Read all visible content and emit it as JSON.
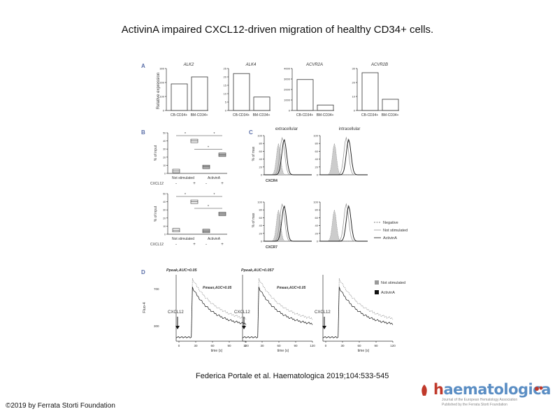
{
  "title": "ActivinA impaired CXCL12-driven migration of healthy CD34+ cells.",
  "citation": "Federica Portale et al. Haematologica 2019;104:533-545",
  "copyright": "©2019 by Ferrata Storti Foundation",
  "logo": {
    "brand_prefix": "h",
    "brand_rest": "aematologica",
    "line1": "Journal of the European Hematology Association",
    "line2": "Published by the Ferrata Storti Foundation"
  },
  "figure": {
    "panel_letters": [
      "A",
      "B",
      "C",
      "D"
    ],
    "panel_a": {
      "ylabel": "Relative expression",
      "charts": [
        {
          "title": "ALK2",
          "categories": [
            "CB-CD34+",
            "BM-CD34+"
          ],
          "values": [
            190,
            240
          ],
          "yticks": [
            "300",
            "200",
            "100",
            "0"
          ],
          "ymax": 300
        },
        {
          "title": "ALK4",
          "categories": [
            "CB-CD34+",
            "BM-CD34+"
          ],
          "values": [
            22,
            8
          ],
          "yticks": [
            "25",
            "20",
            "15",
            "10",
            "5",
            "0"
          ],
          "ymax": 25
        },
        {
          "title": "ACVR2A",
          "categories": [
            "CB-CD34+",
            "BM-CD34+"
          ],
          "values": [
            2950,
            520
          ],
          "yticks": [
            "4000",
            "3000",
            "2000",
            "1000",
            "0"
          ],
          "ymax": 4000
        },
        {
          "title": "ACVR2B",
          "categories": [
            "CB-CD34+",
            "BM-CD34+"
          ],
          "values": [
            27,
            8
          ],
          "yticks": [
            "30",
            "20",
            "10",
            "0"
          ],
          "ymax": 30
        }
      ]
    },
    "panel_b": {
      "ylabel": "% of input",
      "group_labels": [
        "Not stimulated",
        "ActivinA"
      ],
      "row_label": "CXCL12",
      "signs": [
        "-",
        "+",
        "-",
        "+"
      ],
      "sig": "*",
      "plots": [
        {
          "medians": [
            3,
            40,
            8,
            23
          ]
        },
        {
          "medians": [
            5,
            40,
            4,
            25
          ]
        }
      ]
    },
    "panel_c": {
      "col_labels": [
        "extracellular",
        "intracellular"
      ],
      "ylabel": "% of max",
      "xlabels": [
        "CXCR4",
        "CXCR7"
      ],
      "yticks": [
        "100",
        "80",
        "60",
        "40",
        "20",
        "0"
      ],
      "legend": [
        "Negative",
        "Not stimulated",
        "ActivinA"
      ]
    },
    "panel_d": {
      "ylabel": "Fluo-4",
      "xlabel": "time (s)",
      "xticks": [
        "0",
        "30",
        "60",
        "90",
        "120"
      ],
      "arrow_label": "CXCL12",
      "annotations": [
        "Ppeak,AUC=0.05",
        "Pmean,AUC=0.05",
        "Ppeak,AUC=0.057",
        "Pmean,AUC=0.05"
      ],
      "legend": [
        "Not stimulated",
        "ActivinA"
      ]
    }
  }
}
